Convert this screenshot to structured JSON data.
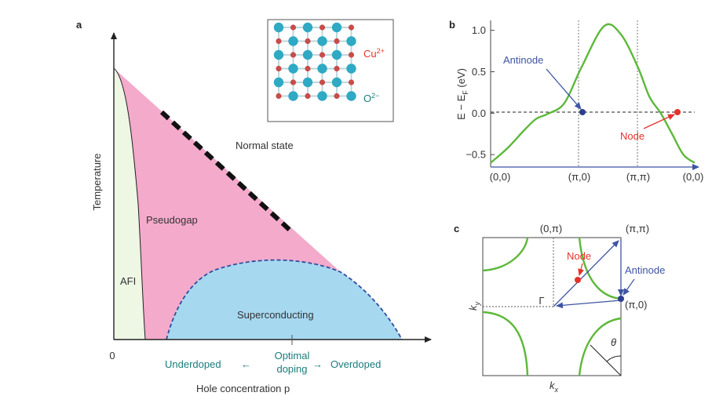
{
  "colors": {
    "afi_fill": "#eef6e4",
    "pseudogap_fill": "#f4aacb",
    "sc_fill": "#a6d8f0",
    "band_line": "#5cb83a",
    "antinode": "#3f54a3",
    "node": "#e4322b",
    "teal_text": "#1b7b7b",
    "oxygen": "#2fa9c4",
    "copper": "#c94b4b"
  },
  "panel_a": {
    "label": "a",
    "y_axis_label": "Temperature",
    "x_axis_label": "Hole concentration p",
    "origin_label": "0",
    "regions": {
      "afi": "AFI",
      "pseudogap": "Pseudogap",
      "normal": "Normal state",
      "superconducting": "Superconducting"
    },
    "optimal_line1": "Optimal",
    "optimal_line2": "doping",
    "underdoped": "Underdoped",
    "overdoped": "Overdoped",
    "arrow_left": "←",
    "arrow_right": "→",
    "inset": {
      "cu_base": "Cu",
      "cu_sup": "2+",
      "o_base": "O",
      "o_sup": "2−"
    }
  },
  "panel_b": {
    "label": "b",
    "y_axis_label": "E − E",
    "y_axis_sub": "F",
    "y_axis_unit": " (eV)",
    "y_ticks": [
      "1.0",
      "0.5",
      "0.0",
      "−0.5"
    ],
    "x_ticks": [
      "(0,0)",
      "(π,0)",
      "(π,π)",
      "(0,0)"
    ],
    "antinode": "Antinode",
    "node": "Node"
  },
  "panel_c": {
    "label": "c",
    "top_left": "(0,π)",
    "top_right": "(π,π)",
    "right_mid": "(π,0)",
    "gamma": "Γ",
    "node": "Node",
    "antinode": "Antinode",
    "theta": "θ",
    "kx_base": "k",
    "kx_sub": "x",
    "ky_base": "k",
    "ky_sub": "y"
  },
  "chart_data": {
    "type": "line",
    "xlabel": "",
    "ylabel": "E − EF (eV)",
    "ylim": [
      -0.65,
      1.12
    ],
    "categories": [
      "(0,0)",
      "(π,0)",
      "(π,π)",
      "(0,0)"
    ],
    "series": [
      {
        "values_x": [
          0,
          0.3,
          0.6,
          0.8,
          1.0,
          1.3,
          1.6,
          2.0,
          2.3,
          2.6,
          2.8,
          3.0,
          3.2,
          3.4,
          3.6
        ],
        "values_y": [
          -0.6,
          -0.42,
          -0.2,
          -0.07,
          -0.01,
          0.12,
          0.55,
          1.05,
          0.95,
          0.55,
          0.2,
          0.0,
          -0.25,
          -0.5,
          -0.6
        ]
      }
    ],
    "annotations": [
      {
        "label": "Antinode",
        "x": 1.0,
        "y": 0.0
      },
      {
        "label": "Node",
        "x": 3.0,
        "y": 0.0
      }
    ]
  }
}
